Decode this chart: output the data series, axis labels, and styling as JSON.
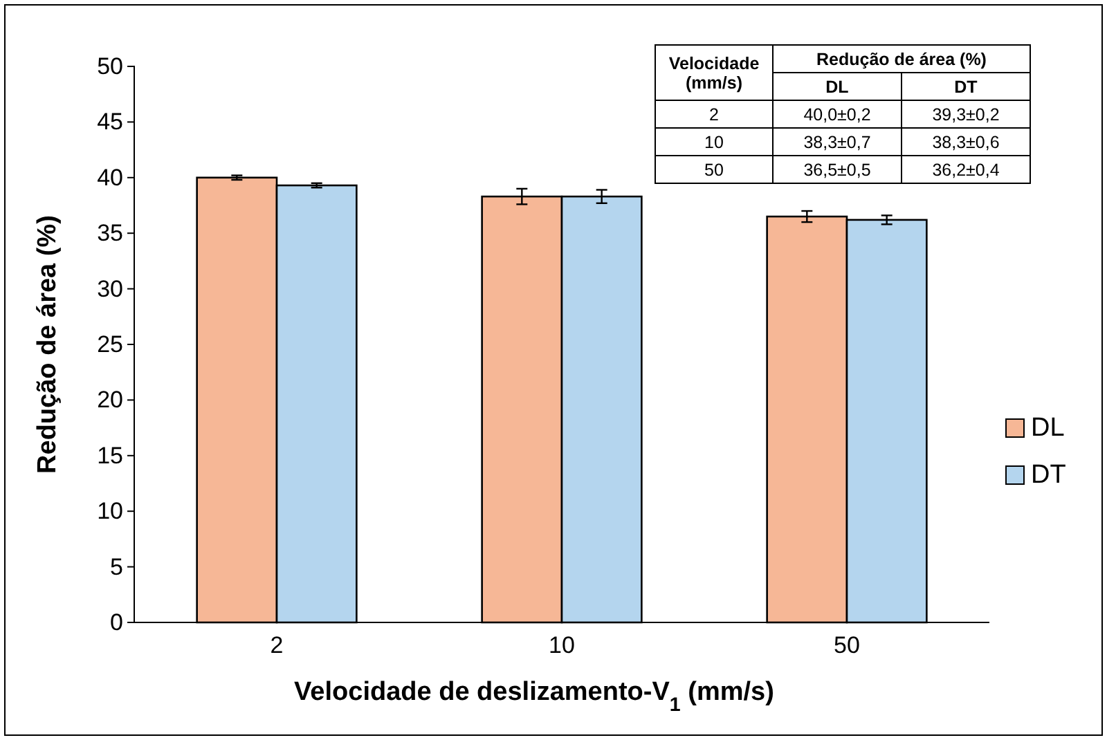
{
  "chart_data": {
    "type": "bar",
    "xlabel": "Velocidade de deslizamento-V$_{1}$ (mm/s)",
    "ylabel": "Redução de área (%)",
    "categories": [
      "2",
      "10",
      "50"
    ],
    "series": [
      {
        "name": "DL",
        "color": "#f6b796",
        "values": [
          40.0,
          38.3,
          36.5
        ],
        "errors": [
          0.2,
          0.7,
          0.5
        ]
      },
      {
        "name": "DT",
        "color": "#b4d5ee",
        "values": [
          39.3,
          38.3,
          36.2
        ],
        "errors": [
          0.2,
          0.6,
          0.4
        ]
      }
    ],
    "annotations": [
      "Velocidade (mm/s)",
      "Redução de área (%)",
      "40,0±0,2",
      "39,3±0,2",
      "38,3±0,7",
      "38,3±0,6",
      "36,5±0,5",
      "36,2±0,4"
    ],
    "ylim": [
      0,
      50
    ],
    "yticks": [
      0,
      5,
      10,
      15,
      20,
      25,
      30,
      35,
      40,
      45,
      50
    ],
    "grid": false,
    "legend": "right"
  }
}
